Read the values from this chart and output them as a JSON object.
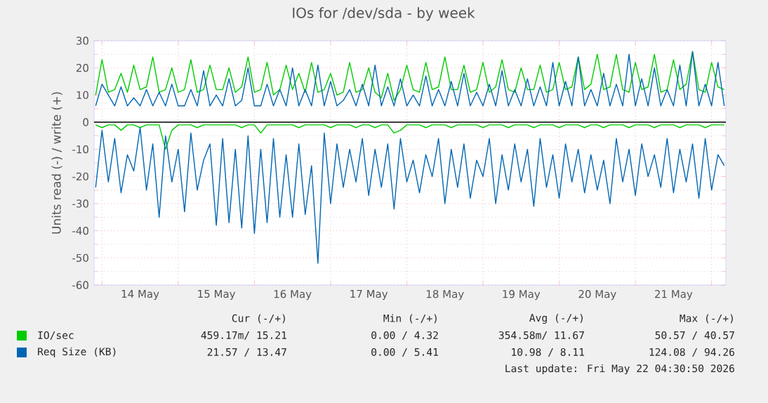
{
  "chart_data": {
    "type": "line",
    "title": "IOs for /dev/sda - by week",
    "ylabel": "Units read (-) / write (+)",
    "xlim": [
      "2026-05-13T21:30",
      "2026-05-22T04:30"
    ],
    "ylim": [
      -60,
      30
    ],
    "yticks": [
      -60,
      -50,
      -40,
      -30,
      -20,
      -10,
      0,
      10,
      20,
      30
    ],
    "xticks": [
      {
        "value": "2026-05-14T00:00",
        "label": null
      },
      {
        "value": "2026-05-15T00:00",
        "label": null
      },
      {
        "value": "2026-05-16T00:00",
        "label": null
      },
      {
        "value": "2026-05-17T00:00",
        "label": null
      },
      {
        "value": "2026-05-18T00:00",
        "label": null
      },
      {
        "value": "2026-05-19T00:00",
        "label": null
      },
      {
        "value": "2026-05-20T00:00",
        "label": null
      },
      {
        "value": "2026-05-21T00:00",
        "label": null
      },
      {
        "value": "2026-05-22T00:00",
        "label": null
      },
      {
        "value": "2026-05-14T12:00",
        "label": "14 May"
      },
      {
        "value": "2026-05-15T12:00",
        "label": "15 May"
      },
      {
        "value": "2026-05-16T12:00",
        "label": "16 May"
      },
      {
        "value": "2026-05-17T12:00",
        "label": "17 May"
      },
      {
        "value": "2026-05-18T12:00",
        "label": "18 May"
      },
      {
        "value": "2026-05-19T12:00",
        "label": "19 May"
      },
      {
        "value": "2026-05-20T12:00",
        "label": "20 May"
      },
      {
        "value": "2026-05-21T12:00",
        "label": "21 May"
      }
    ],
    "x": [
      "2026-05-13T22:00",
      "2026-05-14T00:00",
      "2026-05-14T02:00",
      "2026-05-14T04:00",
      "2026-05-14T06:00",
      "2026-05-14T08:00",
      "2026-05-14T10:00",
      "2026-05-14T12:00",
      "2026-05-14T14:00",
      "2026-05-14T16:00",
      "2026-05-14T18:00",
      "2026-05-14T20:00",
      "2026-05-14T22:00",
      "2026-05-15T00:00",
      "2026-05-15T02:00",
      "2026-05-15T04:00",
      "2026-05-15T06:00",
      "2026-05-15T08:00",
      "2026-05-15T10:00",
      "2026-05-15T12:00",
      "2026-05-15T14:00",
      "2026-05-15T16:00",
      "2026-05-15T18:00",
      "2026-05-15T20:00",
      "2026-05-15T22:00",
      "2026-05-16T00:00",
      "2026-05-16T02:00",
      "2026-05-16T04:00",
      "2026-05-16T06:00",
      "2026-05-16T08:00",
      "2026-05-16T10:00",
      "2026-05-16T12:00",
      "2026-05-16T14:00",
      "2026-05-16T16:00",
      "2026-05-16T18:00",
      "2026-05-16T20:00",
      "2026-05-16T22:00",
      "2026-05-17T00:00",
      "2026-05-17T02:00",
      "2026-05-17T04:00",
      "2026-05-17T06:00",
      "2026-05-17T08:00",
      "2026-05-17T10:00",
      "2026-05-17T12:00",
      "2026-05-17T14:00",
      "2026-05-17T16:00",
      "2026-05-17T18:00",
      "2026-05-17T20:00",
      "2026-05-17T22:00",
      "2026-05-18T00:00",
      "2026-05-18T02:00",
      "2026-05-18T04:00",
      "2026-05-18T06:00",
      "2026-05-18T08:00",
      "2026-05-18T10:00",
      "2026-05-18T12:00",
      "2026-05-18T14:00",
      "2026-05-18T16:00",
      "2026-05-18T18:00",
      "2026-05-18T20:00",
      "2026-05-18T22:00",
      "2026-05-19T00:00",
      "2026-05-19T02:00",
      "2026-05-19T04:00",
      "2026-05-19T06:00",
      "2026-05-19T08:00",
      "2026-05-19T10:00",
      "2026-05-19T12:00",
      "2026-05-19T14:00",
      "2026-05-19T16:00",
      "2026-05-19T18:00",
      "2026-05-19T20:00",
      "2026-05-19T22:00",
      "2026-05-20T00:00",
      "2026-05-20T02:00",
      "2026-05-20T04:00",
      "2026-05-20T06:00",
      "2026-05-20T08:00",
      "2026-05-20T10:00",
      "2026-05-20T12:00",
      "2026-05-20T14:00",
      "2026-05-20T16:00",
      "2026-05-20T18:00",
      "2026-05-20T20:00",
      "2026-05-20T22:00",
      "2026-05-21T00:00",
      "2026-05-21T02:00",
      "2026-05-21T04:00",
      "2026-05-21T06:00",
      "2026-05-21T08:00",
      "2026-05-21T10:00",
      "2026-05-21T12:00",
      "2026-05-21T14:00",
      "2026-05-21T16:00",
      "2026-05-21T18:00",
      "2026-05-21T20:00",
      "2026-05-21T22:00",
      "2026-05-22T00:00",
      "2026-05-22T02:00",
      "2026-05-22T04:00"
    ],
    "series": [
      {
        "name": "IO/sec",
        "color": "#00cc00",
        "values": [
          10,
          23,
          11,
          12,
          18,
          11,
          21,
          12,
          13,
          24,
          11,
          12,
          20,
          11,
          12,
          23,
          11,
          12,
          21,
          12,
          12,
          20,
          11,
          13,
          24,
          11,
          12,
          22,
          10,
          12,
          21,
          12,
          18,
          11,
          22,
          11,
          12,
          18,
          10,
          11,
          22,
          11,
          12,
          20,
          11,
          9,
          18,
          8,
          12,
          21,
          12,
          11,
          22,
          12,
          13,
          24,
          12,
          12,
          21,
          11,
          12,
          22,
          11,
          13,
          23,
          12,
          11,
          20,
          12,
          12,
          21,
          11,
          12,
          22,
          12,
          13,
          24,
          12,
          14,
          25,
          12,
          13,
          25,
          12,
          11,
          22,
          12,
          13,
          25,
          11,
          12,
          23,
          12,
          14,
          26,
          12,
          11,
          22,
          13,
          12
        ]
      },
      {
        "name": "Req Size (KB)",
        "color": "#0066b3",
        "values": [
          6,
          14,
          10,
          6,
          13,
          6,
          9,
          6,
          12,
          6,
          11,
          6,
          14,
          6,
          6,
          12,
          6,
          19,
          6,
          10,
          6,
          16,
          6,
          8,
          20,
          6,
          6,
          14,
          6,
          12,
          6,
          20,
          6,
          12,
          6,
          21,
          6,
          15,
          6,
          8,
          12,
          6,
          14,
          6,
          21,
          6,
          13,
          6,
          16,
          6,
          10,
          6,
          17,
          6,
          12,
          6,
          15,
          6,
          18,
          6,
          11,
          6,
          14,
          6,
          19,
          6,
          12,
          6,
          16,
          6,
          13,
          6,
          22,
          6,
          15,
          6,
          24,
          6,
          12,
          6,
          18,
          6,
          14,
          6,
          25,
          6,
          16,
          6,
          20,
          6,
          12,
          6,
          21,
          6,
          26,
          6,
          14,
          6,
          22,
          6
        ]
      },
      {
        "color": "#00cc00",
        "values": [
          -1,
          -2,
          -1,
          -1,
          -3,
          -1,
          -1,
          -2,
          -1,
          -1,
          -1,
          -10,
          -3,
          -1,
          -1,
          -1,
          -2,
          -1,
          -1,
          -1,
          -1,
          -1,
          -1,
          -2,
          -1,
          -1,
          -4,
          -1,
          -1,
          -1,
          -1,
          -1,
          -2,
          -1,
          -1,
          -1,
          -1,
          -2,
          -1,
          -1,
          -1,
          -2,
          -1,
          -1,
          -2,
          -1,
          -1,
          -4,
          -3,
          -1,
          -1,
          -1,
          -2,
          -1,
          -1,
          -1,
          -2,
          -1,
          -1,
          -1,
          -1,
          -2,
          -1,
          -1,
          -1,
          -2,
          -1,
          -1,
          -1,
          -2,
          -1,
          -1,
          -1,
          -2,
          -1,
          -1,
          -1,
          -2,
          -1,
          -1,
          -2,
          -1,
          -1,
          -1,
          -2,
          -1,
          -1,
          -1,
          -2,
          -1,
          -1,
          -1,
          -2,
          -1,
          -1,
          -1,
          -2,
          -1,
          -1,
          -1
        ]
      },
      {
        "color": "#0066b3",
        "values": [
          -24,
          -3,
          -22,
          -6,
          -26,
          -12,
          -18,
          -2,
          -25,
          -8,
          -35,
          -5,
          -22,
          -10,
          -33,
          -4,
          -25,
          -14,
          -8,
          -38,
          -6,
          -37,
          -10,
          -39,
          -5,
          -41,
          -10,
          -37,
          -6,
          -35,
          -12,
          -35,
          -8,
          -34,
          -16,
          -52,
          -4,
          -30,
          -8,
          -24,
          -10,
          -22,
          -6,
          -27,
          -10,
          -24,
          -8,
          -32,
          -6,
          -22,
          -14,
          -26,
          -12,
          -20,
          -6,
          -30,
          -10,
          -24,
          -8,
          -28,
          -14,
          -20,
          -6,
          -30,
          -12,
          -25,
          -8,
          -22,
          -10,
          -31,
          -6,
          -24,
          -12,
          -28,
          -8,
          -22,
          -10,
          -26,
          -12,
          -25,
          -14,
          -30,
          -6,
          -22,
          -10,
          -27,
          -8,
          -20,
          -12,
          -24,
          -6,
          -26,
          -10,
          -22,
          -8,
          -28,
          -6,
          -25,
          -12,
          -16
        ]
      }
    ],
    "ref_lines": [
      {
        "axis": "y",
        "value": 0,
        "color": "#000000"
      }
    ],
    "grid": true,
    "legend": "bottom",
    "annotations": [
      "Cur (-/+)",
      "Min (-/+)",
      "Avg (-/+)",
      "Max (-/+)",
      "459.17m/ 15.21",
      "0.00 /  4.32",
      "354.58m/ 11.67",
      "50.57 / 40.57",
      "21.57 / 13.47",
      "0.00 /  5.41",
      "10.98 /  8.11",
      "124.08 / 94.26",
      "Last update: Fri May 22 04:30:50 2026"
    ]
  }
}
